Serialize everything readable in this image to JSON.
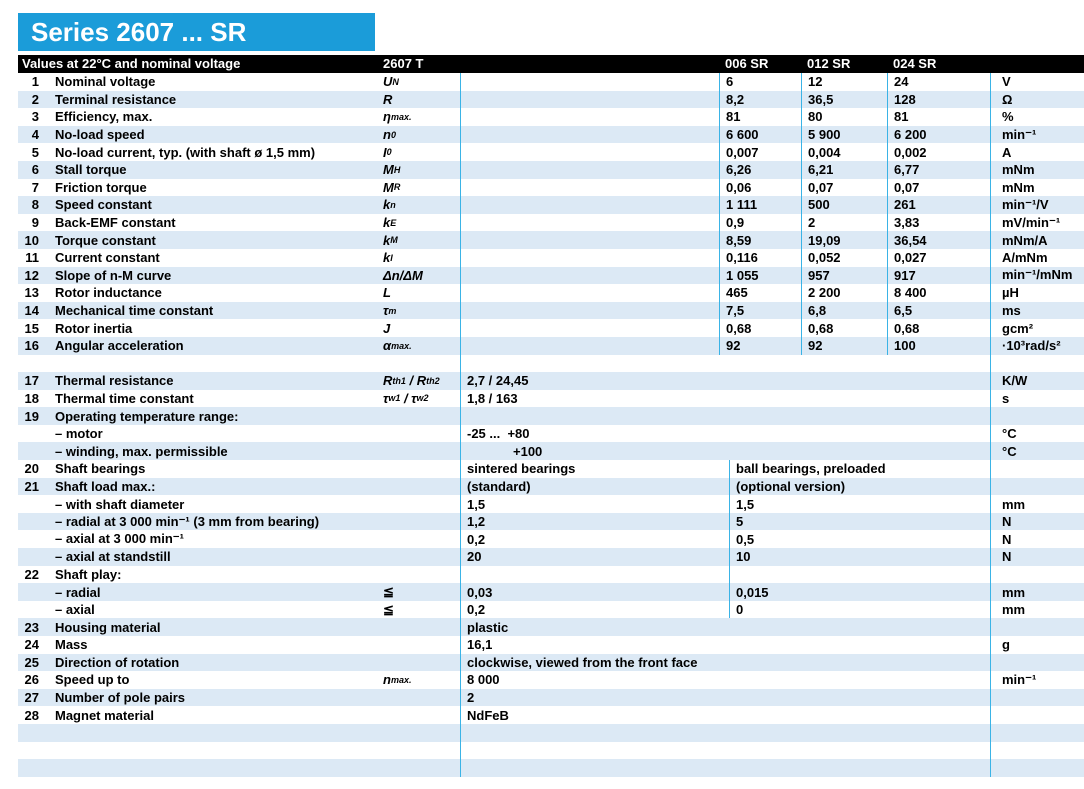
{
  "title": "Series 2607 ... SR",
  "header": {
    "left": "Values at 22°C and nominal voltage",
    "series": "2607 T",
    "variants": [
      "006 SR",
      "012 SR",
      "024 SR"
    ]
  },
  "colors": {
    "accent": "#1b9cd9",
    "stripe": "#dce9f5",
    "grid_line": "#3ab3e6",
    "header_bg": "#000000",
    "header_text": "#ffffff"
  },
  "rows": [
    {
      "num": "1",
      "label": "Nominal voltage",
      "sym": "U_{N}",
      "type": "spec3",
      "values": [
        "6",
        "12",
        "24"
      ],
      "unit": "V"
    },
    {
      "num": "2",
      "label": "Terminal resistance",
      "sym": "R",
      "type": "spec3",
      "values": [
        "8,2",
        "36,5",
        "128"
      ],
      "unit": "Ω"
    },
    {
      "num": "3",
      "label": "Efficiency, max.",
      "sym": "η_{max.}",
      "type": "spec3",
      "values": [
        "81",
        "80",
        "81"
      ],
      "unit": "%"
    },
    {
      "num": "4",
      "label": "No-load speed",
      "sym": "n_{0}",
      "type": "spec3",
      "values": [
        "6 600",
        "5 900",
        "6 200"
      ],
      "unit": "min⁻¹"
    },
    {
      "num": "5",
      "label": "No-load current, typ. (with shaft ø 1,5 mm)",
      "sym": "I_{0}",
      "type": "spec3",
      "values": [
        "0,007",
        "0,004",
        "0,002"
      ],
      "unit": "A"
    },
    {
      "num": "6",
      "label": "Stall torque",
      "sym": "M_{H}",
      "type": "spec3",
      "values": [
        "6,26",
        "6,21",
        "6,77"
      ],
      "unit": "mNm"
    },
    {
      "num": "7",
      "label": "Friction torque",
      "sym": "M_{R}",
      "type": "spec3",
      "values": [
        "0,06",
        "0,07",
        "0,07"
      ],
      "unit": "mNm"
    },
    {
      "num": "8",
      "label": "Speed constant",
      "sym": "k_{n}",
      "type": "spec3",
      "values": [
        "1 111",
        "500",
        "261"
      ],
      "unit": "min⁻¹/V"
    },
    {
      "num": "9",
      "label": "Back-EMF constant",
      "sym": "k_{E}",
      "type": "spec3",
      "values": [
        "0,9",
        "2",
        "3,83"
      ],
      "unit": "mV/min⁻¹"
    },
    {
      "num": "10",
      "label": "Torque constant",
      "sym": "k_{M}",
      "type": "spec3",
      "values": [
        "8,59",
        "19,09",
        "36,54"
      ],
      "unit": "mNm/A"
    },
    {
      "num": "11",
      "label": "Current constant",
      "sym": "k_{I}",
      "type": "spec3",
      "values": [
        "0,116",
        "0,052",
        "0,027"
      ],
      "unit": "A/mNm"
    },
    {
      "num": "12",
      "label": "Slope of n-M curve",
      "sym": "Δn/ΔM",
      "type": "spec3",
      "values": [
        "1 055",
        "957",
        "917"
      ],
      "unit": "min⁻¹/mNm"
    },
    {
      "num": "13",
      "label": "Rotor inductance",
      "sym": "L",
      "type": "spec3",
      "values": [
        "465",
        "2 200",
        "8 400"
      ],
      "unit": "µH"
    },
    {
      "num": "14",
      "label": "Mechanical time constant",
      "sym": "τ_{m}",
      "type": "spec3",
      "values": [
        "7,5",
        "6,8",
        "6,5"
      ],
      "unit": "ms"
    },
    {
      "num": "15",
      "label": "Rotor inertia",
      "sym": "J",
      "type": "spec3",
      "values": [
        "0,68",
        "0,68",
        "0,68"
      ],
      "unit": "gcm²"
    },
    {
      "num": "16",
      "label": "Angular acceleration",
      "sym": "α_{max.}",
      "type": "spec3",
      "values": [
        "92",
        "92",
        "100"
      ],
      "unit": "·10³rad/s²"
    },
    {
      "type": "empty"
    },
    {
      "num": "17",
      "label": "Thermal resistance",
      "sym": "R_{th1} / R_{th2}",
      "type": "span",
      "value": "2,7 / 24,45",
      "unit": "K/W"
    },
    {
      "num": "18",
      "label": "Thermal time constant",
      "sym": "τ_{w1} / τ_{w2}",
      "type": "span",
      "value": "1,8 / 163",
      "unit": "s"
    },
    {
      "num": "19",
      "label": "Operating temperature range:",
      "type": "none"
    },
    {
      "label": "– motor",
      "type": "span",
      "value": "-25 ...  +80",
      "unit": "°C"
    },
    {
      "label": "– winding, max. permissible",
      "type": "span",
      "value": "+100",
      "value_indent": true,
      "unit": "°C"
    },
    {
      "num": "20",
      "label": "Shaft bearings",
      "type": "split2",
      "values": [
        "sintered bearings",
        "ball bearings, preloaded"
      ]
    },
    {
      "num": "21",
      "label": "Shaft load max.:",
      "type": "split2",
      "values": [
        "(standard)",
        "(optional version)"
      ]
    },
    {
      "label": "– with shaft diameter",
      "type": "split2",
      "values": [
        "1,5",
        "1,5"
      ],
      "unit": "mm"
    },
    {
      "label": "– radial at 3 000 min⁻¹ (3 mm from bearing)",
      "type": "split2",
      "values": [
        "1,2",
        "5"
      ],
      "unit": "N"
    },
    {
      "label": "– axial at 3 000 min⁻¹",
      "type": "split2",
      "values": [
        "0,2",
        "0,5"
      ],
      "unit": "N"
    },
    {
      "label": "– axial at standstill",
      "type": "split2",
      "values": [
        "20",
        "10"
      ],
      "unit": "N"
    },
    {
      "num": "22",
      "label": "Shaft play:",
      "type": "split2",
      "values": [
        "",
        ""
      ]
    },
    {
      "label": "– radial",
      "sym": "≦",
      "sym_upright": true,
      "type": "split2",
      "values": [
        "0,03",
        "0,015"
      ],
      "unit": "mm"
    },
    {
      "label": "– axial",
      "sym": "≦",
      "sym_upright": true,
      "type": "split2",
      "values": [
        "0,2",
        "0"
      ],
      "unit": "mm"
    },
    {
      "num": "23",
      "label": "Housing material",
      "type": "span",
      "value": "plastic"
    },
    {
      "num": "24",
      "label": "Mass",
      "type": "span",
      "value": "16,1",
      "unit": "g"
    },
    {
      "num": "25",
      "label": "Direction of rotation",
      "type": "span",
      "value": "clockwise, viewed from the front face"
    },
    {
      "num": "26",
      "label": "Speed up to",
      "sym": "n_{max.}",
      "type": "span",
      "value": "8 000",
      "unit": "min⁻¹"
    },
    {
      "num": "27",
      "label": "Number of pole pairs",
      "type": "span",
      "value": "2"
    },
    {
      "num": "28",
      "label": "Magnet material",
      "type": "span",
      "value": "NdFeB"
    },
    {
      "type": "empty"
    },
    {
      "type": "empty"
    },
    {
      "type": "empty"
    }
  ]
}
